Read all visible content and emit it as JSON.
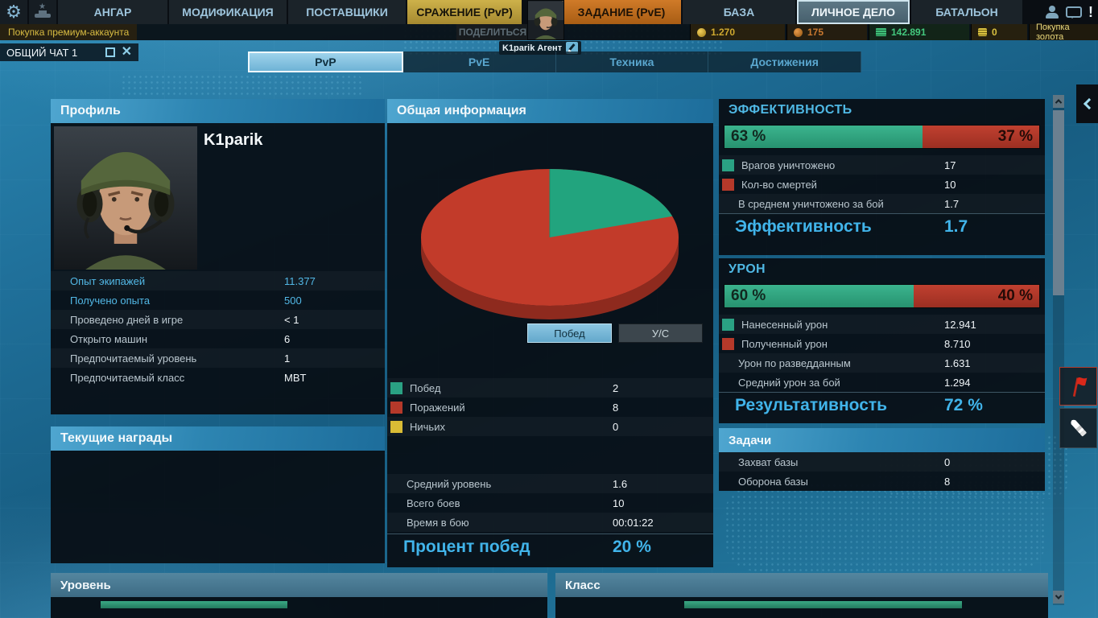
{
  "topnav": {
    "items": [
      {
        "label": "АНГАР"
      },
      {
        "label": "МОДИФИКАЦИЯ"
      },
      {
        "label": "ПОСТАВЩИКИ"
      },
      {
        "label": "СРАЖЕНИЕ (PvP)"
      },
      {
        "label": "ЗАДАНИЕ (PvE)"
      },
      {
        "label": "БАЗА"
      },
      {
        "label": "ЛИЧНОЕ ДЕЛО"
      },
      {
        "label": "БАТАЛЬОН"
      }
    ],
    "notification": "!",
    "premium_button": "Покупка премиум-аккаунта",
    "share_button": "ПОДЕЛИТЬСЯ",
    "player_chip": "K1parik Агент",
    "currencies": {
      "gold": "1.270",
      "tokens": "175",
      "credits": "142.891",
      "insignia": "0"
    },
    "buy_gold": "Покупка золота"
  },
  "chat": {
    "title": "ОБЩИЙ ЧАТ 1"
  },
  "tabs": [
    {
      "label": "PvP",
      "active": true
    },
    {
      "label": "PvE",
      "active": false
    },
    {
      "label": "Техника",
      "active": false
    },
    {
      "label": "Достижения",
      "active": false
    }
  ],
  "profile": {
    "title": "Профиль",
    "name": "K1parik",
    "rows": [
      {
        "label": "Опыт экипажей",
        "value": "11.377"
      },
      {
        "label": "Получено опыта",
        "value": "500"
      },
      {
        "label": "Проведено дней в игре",
        "value": "< 1"
      },
      {
        "label": "Открыто машин",
        "value": "6"
      },
      {
        "label": "Предпочитаемый уровень",
        "value": "1"
      },
      {
        "label": "Предпочитаемый класс",
        "value": "MBT"
      }
    ]
  },
  "awards": {
    "title": "Текущие награды"
  },
  "general": {
    "title": "Общая информация",
    "buttons": [
      {
        "label": "Побед",
        "active": true
      },
      {
        "label": "У/С",
        "active": false
      }
    ],
    "legend": [
      {
        "label": "Побед",
        "value": "2",
        "color": "#2aa183"
      },
      {
        "label": "Поражений",
        "value": "8",
        "color": "#b5392a"
      },
      {
        "label": "Ничьих",
        "value": "0",
        "color": "#d9bc35"
      }
    ],
    "rows": [
      {
        "label": "Средний уровень",
        "value": "1.6"
      },
      {
        "label": "Всего боев",
        "value": "10"
      },
      {
        "label": "Время в бою",
        "value": "00:01:22"
      }
    ],
    "summary_label": "Процент побед",
    "summary_value": "20 %"
  },
  "effectiveness": {
    "title": "ЭФФЕКТИВНОСТЬ",
    "bar": {
      "green_pct": 63,
      "green_label": "63 %",
      "red_label": "37 %",
      "green_color": "#2fa482",
      "red_color": "#b23527"
    },
    "rows": [
      {
        "label": "Врагов уничтожено",
        "value": "17"
      },
      {
        "label": "Кол-во смертей",
        "value": "10"
      },
      {
        "label": "В среднем уничтожено за бой",
        "value": "1.7"
      }
    ],
    "summary_label": "Эффективность",
    "summary_value": "1.7"
  },
  "damage": {
    "title": "УРОН",
    "bar": {
      "green_pct": 60,
      "green_label": "60 %",
      "red_label": "40 %",
      "green_color": "#2fa482",
      "red_color": "#b23527"
    },
    "rows": [
      {
        "label": "Нанесенный урон",
        "value": "12.941"
      },
      {
        "label": "Полученный урон",
        "value": "8.710"
      },
      {
        "label": "Урон по разведданным",
        "value": "1.631"
      },
      {
        "label": "Средний урон за бой",
        "value": "1.294"
      }
    ],
    "summary_label": "Результативность",
    "summary_value": "72 %"
  },
  "tasks": {
    "title": "Задачи",
    "rows": [
      {
        "label": "Захват базы",
        "value": "0"
      },
      {
        "label": "Оборона базы",
        "value": "8"
      }
    ]
  },
  "bottom": {
    "level_title": "Уровень",
    "class_title": "Класс"
  },
  "chart_data": [
    {
      "type": "pie",
      "title": "Общая информация",
      "labels": [
        "Побед",
        "Поражений",
        "Ничьих"
      ],
      "values": [
        2,
        8,
        0
      ],
      "colors": [
        "#22a47e",
        "#c23b2a",
        "#d9bc35"
      ],
      "percentages": [
        20,
        80,
        0
      ],
      "style": "3d-pie, green slice starts at 12 o'clock clockwise"
    },
    {
      "type": "stacked-bar",
      "title": "ЭФФЕКТИВНОСТЬ",
      "series": [
        {
          "name": "Врагов уничтожено",
          "value": 17,
          "pct": 63,
          "color": "#2fa482"
        },
        {
          "name": "Кол-во смертей",
          "value": 10,
          "pct": 37,
          "color": "#b23527"
        }
      ]
    },
    {
      "type": "stacked-bar",
      "title": "УРОН",
      "series": [
        {
          "name": "Нанесенный урон",
          "value": 12941,
          "pct": 60,
          "color": "#2fa482"
        },
        {
          "name": "Полученный урон",
          "value": 8710,
          "pct": 40,
          "color": "#b23527"
        }
      ]
    }
  ]
}
